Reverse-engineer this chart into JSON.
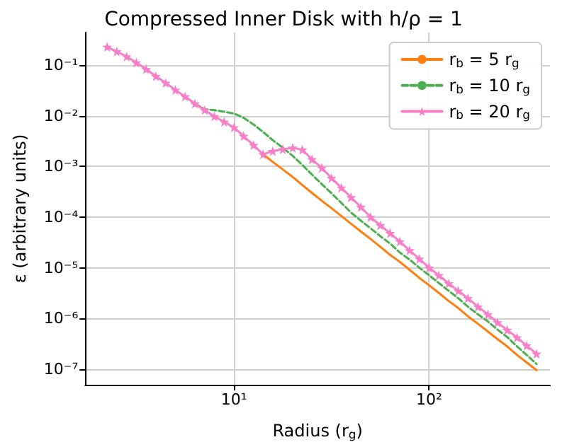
{
  "chart_data": {
    "type": "line",
    "title": "Compressed Inner Disk with h/ρ = 1",
    "xlabel": "Radius (r$_{g}$)",
    "ylabel": "ε (arbitrary units)",
    "x": [
      2.24,
      2.51,
      2.82,
      3.16,
      3.55,
      3.98,
      4.47,
      5.01,
      5.62,
      6.31,
      7.08,
      7.94,
      8.91,
      10,
      11.2,
      12.6,
      14.1,
      15.8,
      17.8,
      20.0,
      22.4,
      25.1,
      28.2,
      31.6,
      35.5,
      39.8,
      44.7,
      50.1,
      56.2,
      63.1,
      70.8,
      79.4,
      89.1,
      100,
      112,
      126,
      141,
      158,
      178,
      200,
      224,
      251,
      282,
      316,
      355
    ],
    "series": [
      {
        "name": "r$_{b}$ = 5 r$_{g}$",
        "color": "#ff7f0e",
        "line_style": "solid",
        "marker": "none",
        "values": [
          null,
          null,
          null,
          null,
          null,
          null,
          null,
          null,
          null,
          null,
          null,
          null,
          null,
          null,
          null,
          null,
          0.00174,
          0.00123,
          0.00087,
          0.00062,
          0.00043,
          0.0003,
          0.00021,
          0.00015,
          0.000105,
          7.4e-05,
          5.2e-05,
          3.7e-05,
          2.6e-05,
          1.8e-05,
          1.3e-05,
          9.1e-06,
          6.3e-06,
          4.5e-06,
          3.2e-06,
          2.2e-06,
          1.6e-06,
          1.1e-06,
          7.8e-07,
          5.5e-07,
          3.9e-07,
          2.8e-07,
          1.9e-07,
          1.35e-07,
          9.5e-08
        ]
      },
      {
        "name": "r$_{b}$ = 10 r$_{g}$",
        "color": "#4caf50",
        "line_style": "dashed",
        "marker": "none",
        "values": [
          null,
          null,
          null,
          null,
          null,
          null,
          null,
          null,
          null,
          0.0174,
          0.0135,
          0.0129,
          0.012,
          0.0111,
          0.00912,
          0.00676,
          0.00479,
          0.00331,
          0.00234,
          0.00162,
          0.00107,
          0.00069,
          0.000447,
          0.000295,
          0.000191,
          0.000123,
          8.5e-05,
          6e-05,
          4.2e-05,
          3e-05,
          2e-05,
          1.45e-05,
          1e-05,
          7.1e-06,
          5e-06,
          3.5e-06,
          2.5e-06,
          1.7e-06,
          1.2e-06,
          8.7e-07,
          6e-07,
          4.3e-07,
          2.8e-07,
          1.9e-07,
          1.26e-07
        ]
      },
      {
        "name": "r$_{b}$ = 20 r$_{g}$",
        "color": "#f77fc7",
        "line_style": "solid",
        "marker": "star",
        "values": [
          0.229,
          0.186,
          0.148,
          0.112,
          0.0832,
          0.0603,
          0.0447,
          0.0324,
          0.024,
          0.0174,
          0.0129,
          0.00977,
          0.00759,
          0.00589,
          0.00398,
          0.00263,
          0.00174,
          0.002,
          0.00219,
          0.00234,
          0.00214,
          0.00138,
          0.000933,
          0.000589,
          0.00038,
          0.000245,
          0.000158,
          0.0001,
          6.9e-05,
          4.8e-05,
          3.3e-05,
          2.2e-05,
          1.5e-05,
          1e-05,
          7.1e-06,
          4.9e-06,
          3.5e-06,
          2.5e-06,
          1.7e-06,
          1.2e-06,
          8.3e-07,
          5.9e-07,
          4.2e-07,
          2.9e-07,
          2e-07
        ]
      }
    ],
    "log": "xy",
    "xlim": [
      1.73,
      416
    ],
    "ylim": [
      4.9e-08,
      0.44
    ],
    "xticks": [
      {
        "value": 10,
        "label": "10¹"
      },
      {
        "value": 100,
        "label": "10²"
      }
    ],
    "yticks": [
      {
        "value": 1e-07,
        "label": "10⁻⁷"
      },
      {
        "value": 1e-06,
        "label": "10⁻⁶"
      },
      {
        "value": 1e-05,
        "label": "10⁻⁵"
      },
      {
        "value": 0.0001,
        "label": "10⁻⁴"
      },
      {
        "value": 0.001,
        "label": "10⁻³"
      },
      {
        "value": 0.01,
        "label": "10⁻²"
      },
      {
        "value": 0.1,
        "label": "10⁻¹"
      }
    ],
    "grid": true,
    "legend": "top right"
  }
}
